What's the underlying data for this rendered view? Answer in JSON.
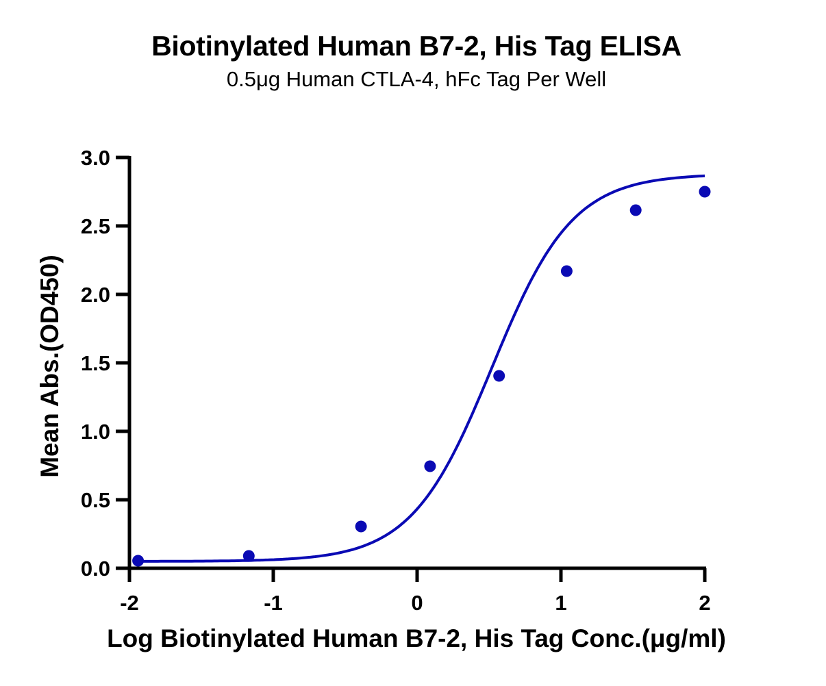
{
  "chart_data": {
    "type": "scatter",
    "title": "Biotinylated Human B7-2, His Tag ELISA",
    "subtitle": "0.5μg Human CTLA-4, hFc Tag Per Well",
    "xlabel": "Log Biotinylated Human B7-2, His Tag Conc.(μg/ml)",
    "ylabel": "Mean Abs.(OD450)",
    "xlim": [
      -2,
      2
    ],
    "ylim": [
      0,
      3.0
    ],
    "x_ticks": [
      "-2",
      "-1",
      "0",
      "1",
      "2"
    ],
    "y_ticks": [
      "0.0",
      "0.5",
      "1.0",
      "1.5",
      "2.0",
      "2.5",
      "3.0"
    ],
    "grid": false,
    "legend": null,
    "series": [
      {
        "name": "Biotinylated Human B7-2, His Tag",
        "color": "#0a0ab4",
        "x": [
          -1.94,
          -1.17,
          -0.39,
          0.09,
          0.57,
          1.04,
          1.52,
          2.0
        ],
        "values": [
          0.055,
          0.09,
          0.305,
          0.745,
          1.405,
          2.17,
          2.615,
          2.75
        ],
        "fit": "sigmoidal 4PL curve"
      }
    ]
  }
}
